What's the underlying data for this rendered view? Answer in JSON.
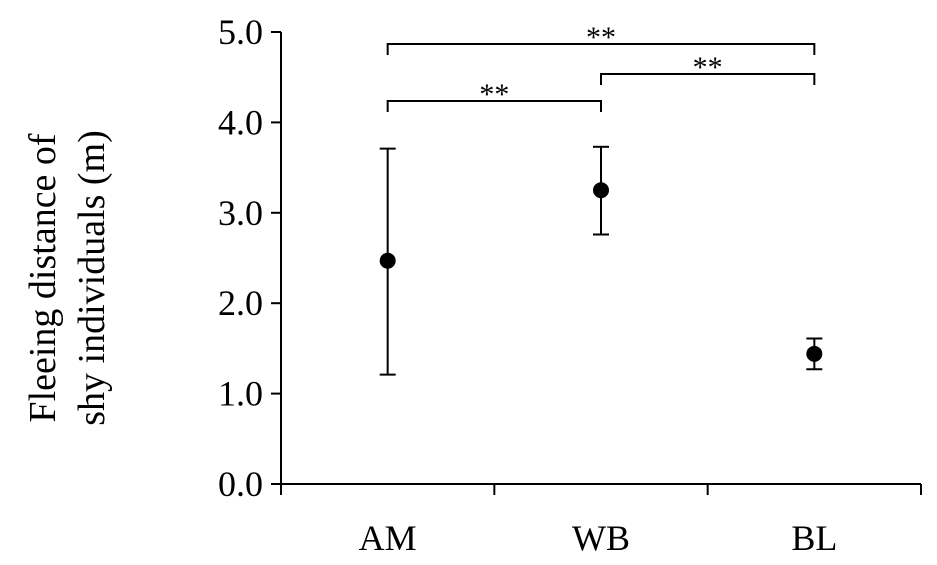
{
  "chart_data": {
    "type": "scatter",
    "categories": [
      "AM",
      "WB",
      "BL"
    ],
    "series": [
      {
        "values": [
          2.47,
          3.25,
          1.44
        ],
        "error_low": [
          1.21,
          2.76,
          1.27
        ],
        "error_high": [
          3.71,
          3.73,
          1.61
        ]
      }
    ],
    "ylabel_lines": [
      "Fleeing distance of",
      "shy individuals (m)"
    ],
    "xlabel": "",
    "title": "",
    "ylim": [
      0,
      5.0
    ],
    "yticks": [
      "0.0",
      "1.0",
      "2.0",
      "3.0",
      "4.0",
      "5.0"
    ],
    "significance": [
      {
        "from": "AM",
        "to": "WB",
        "label": "**"
      },
      {
        "from": "WB",
        "to": "BL",
        "label": "**"
      },
      {
        "from": "AM",
        "to": "BL",
        "label": "**"
      }
    ],
    "grid": false,
    "legend": "none",
    "marker_color": "#000000"
  }
}
